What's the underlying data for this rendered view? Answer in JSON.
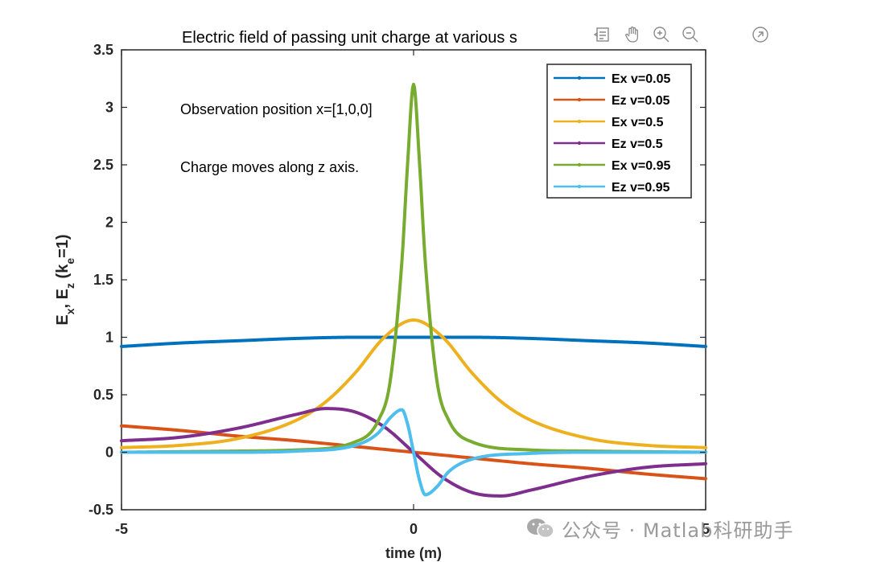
{
  "chart_data": {
    "type": "line",
    "title": "Electric field of passing unit charge at various s",
    "xlabel": "time (m)",
    "ylabel": "E_x, E_z (k_e=1)",
    "xlim": [
      -5,
      5
    ],
    "ylim": [
      -0.5,
      3.5
    ],
    "xticks": [
      "-5",
      "0",
      "5"
    ],
    "yticks": [
      "-0.5",
      "0",
      "0.5",
      "1",
      "1.5",
      "2",
      "2.5",
      "3",
      "3.5"
    ],
    "grid": false,
    "legend_position": "top-right",
    "annotations": [
      "Observation position x=[1,0,0]",
      "Charge moves along z axis."
    ],
    "series": [
      {
        "name": "Ex v=0.05",
        "color": "#0072BD",
        "x": [
          -5,
          -4,
          -3,
          -2,
          -1,
          0,
          1,
          2,
          3,
          4,
          5
        ],
        "y": [
          0.92,
          0.95,
          0.97,
          0.99,
          1.0,
          1.0,
          1.0,
          0.99,
          0.97,
          0.95,
          0.92
        ]
      },
      {
        "name": "Ez v=0.05",
        "color": "#D95319",
        "x": [
          -5,
          -4,
          -3,
          -2,
          -1,
          0,
          1,
          2,
          3,
          4,
          5
        ],
        "y": [
          0.23,
          0.19,
          0.14,
          0.1,
          0.05,
          0.0,
          -0.05,
          -0.1,
          -0.14,
          -0.19,
          -0.23
        ]
      },
      {
        "name": "Ex v=0.5",
        "color": "#EDB120",
        "x": [
          -5,
          -4,
          -3,
          -2,
          -1.5,
          -1,
          -0.5,
          0,
          0.5,
          1,
          1.5,
          2,
          3,
          4,
          5
        ],
        "y": [
          0.04,
          0.06,
          0.12,
          0.28,
          0.44,
          0.69,
          1.0,
          1.15,
          1.0,
          0.69,
          0.44,
          0.28,
          0.12,
          0.06,
          0.04
        ]
      },
      {
        "name": "Ez v=0.5",
        "color": "#7E2F8E",
        "x": [
          -5,
          -4,
          -3,
          -2,
          -1.5,
          -1,
          -0.5,
          0,
          0.5,
          1,
          1.5,
          2,
          3,
          4,
          5
        ],
        "y": [
          0.1,
          0.13,
          0.21,
          0.33,
          0.38,
          0.35,
          0.22,
          0.0,
          -0.22,
          -0.35,
          -0.38,
          -0.33,
          -0.21,
          -0.13,
          -0.1
        ]
      },
      {
        "name": "Ex v=0.95",
        "color": "#77AC30",
        "x": [
          -5,
          -3,
          -2,
          -1,
          -0.6,
          -0.4,
          -0.2,
          -0.1,
          0,
          0.1,
          0.2,
          0.4,
          0.6,
          1,
          2,
          3,
          5
        ],
        "y": [
          0.0,
          0.01,
          0.02,
          0.09,
          0.28,
          0.62,
          1.66,
          2.53,
          3.2,
          2.53,
          1.66,
          0.62,
          0.28,
          0.09,
          0.02,
          0.01,
          0.0
        ]
      },
      {
        "name": "Ez v=0.95",
        "color": "#4DBEEE",
        "x": [
          -5,
          -3,
          -2,
          -1,
          -0.6,
          -0.4,
          -0.2,
          -0.1,
          0,
          0.1,
          0.2,
          0.4,
          0.6,
          1,
          2,
          3,
          5
        ],
        "y": [
          0.0,
          0.0,
          0.01,
          0.06,
          0.17,
          0.3,
          0.37,
          0.24,
          0.0,
          -0.24,
          -0.37,
          -0.3,
          -0.17,
          -0.06,
          -0.01,
          0.0,
          0.0
        ]
      }
    ]
  },
  "toolbar": {
    "icons": [
      "data-tips-icon",
      "pan-hand-icon",
      "zoom-in-icon",
      "zoom-out-icon",
      "export-icon"
    ]
  },
  "watermark": {
    "text": "公众号 · Matlab科研助手",
    "icon": "wechat-icon"
  }
}
